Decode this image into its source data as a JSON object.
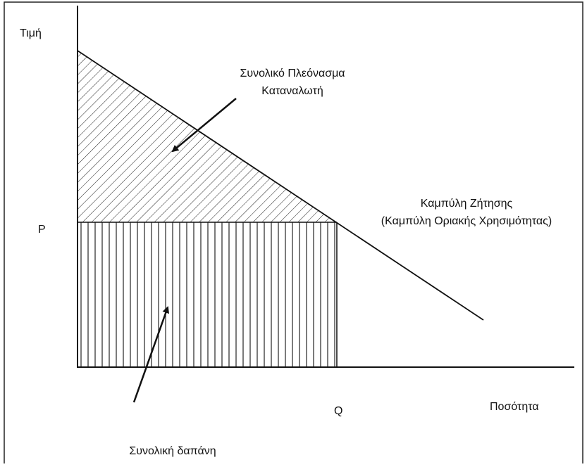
{
  "axes": {
    "y_label": "Τιμή",
    "x_label": "Ποσότητα",
    "price_mark": "P",
    "quantity_mark": "Q"
  },
  "labels": {
    "consumer_surplus": [
      "Συνολικό Πλεόνασμα",
      "Καταναλωτή"
    ],
    "demand_curve": [
      "Καμπύλη Ζήτησης",
      "(Καμπύλη Οριακής Χρησιμότητας)"
    ],
    "total_expenditure": "Συνολική δαπάνη"
  }
}
